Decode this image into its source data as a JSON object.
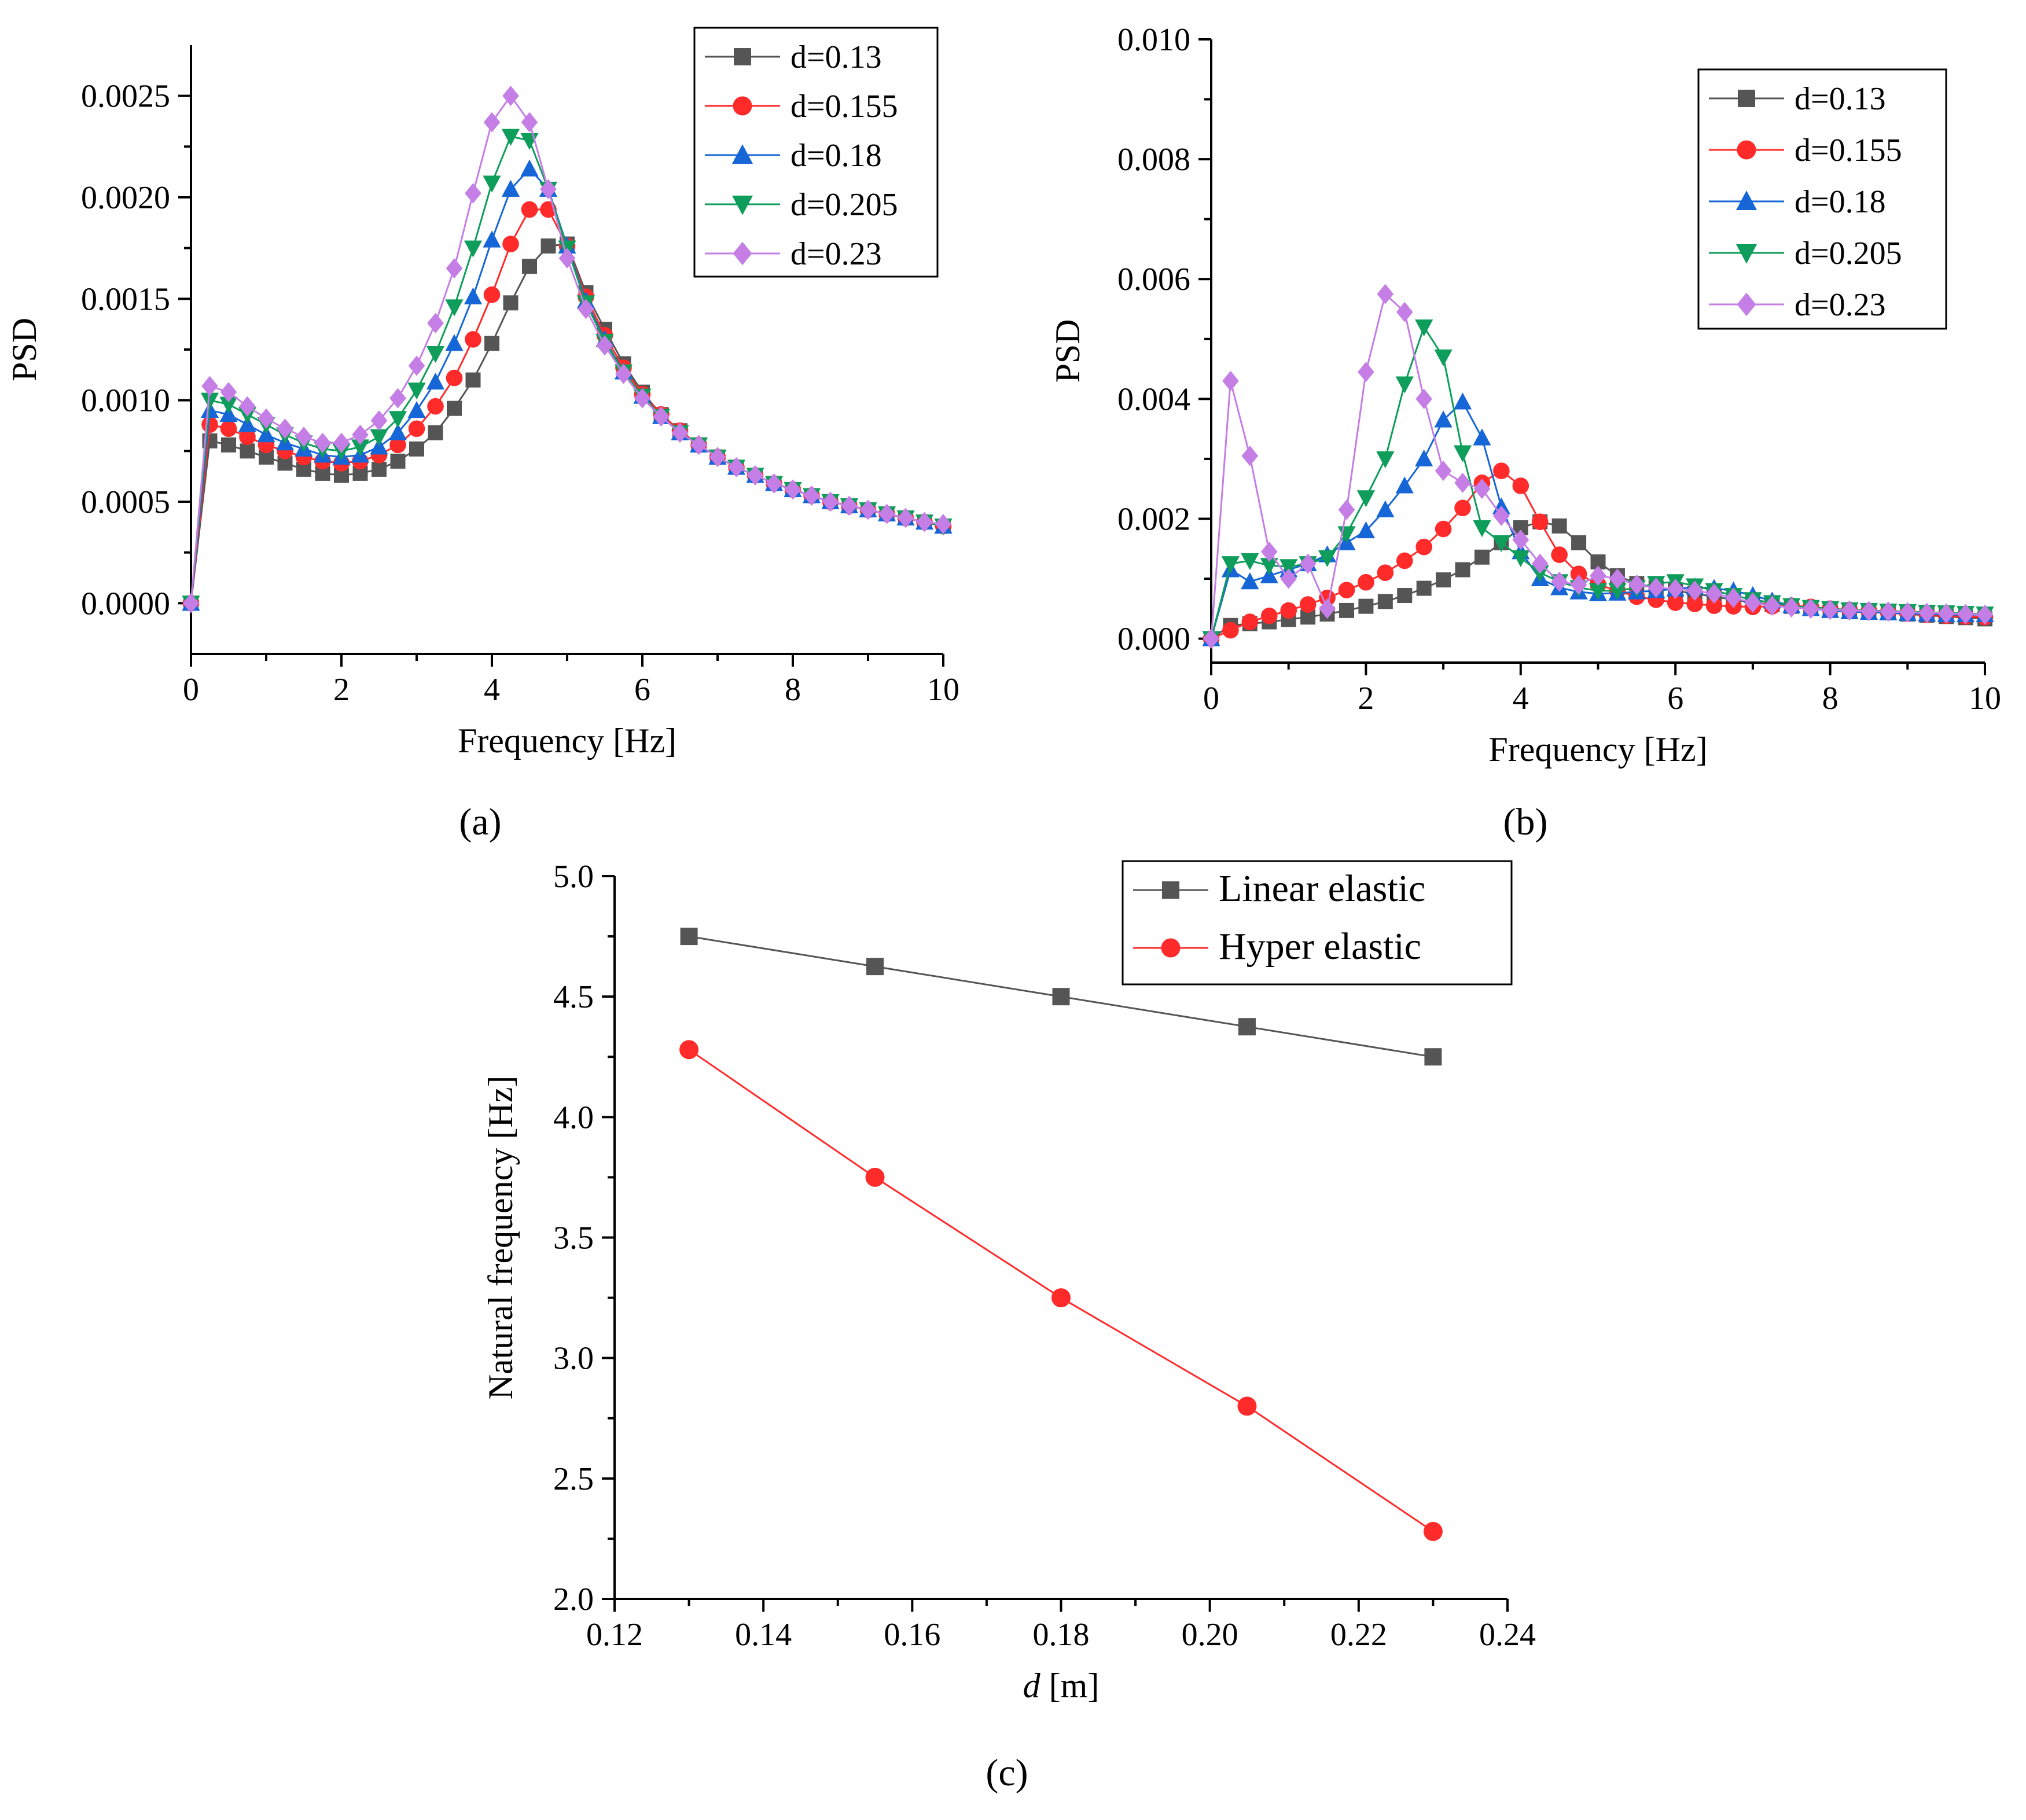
{
  "chart_data": [
    {
      "id": "a",
      "type": "line",
      "panel_label": "(a)",
      "title": "",
      "xlabel": "Frequency [Hz]",
      "ylabel": "PSD",
      "xlim": [
        0,
        10
      ],
      "ylim": [
        -0.00025,
        0.00275
      ],
      "xticks": [
        "0",
        "2",
        "4",
        "6",
        "8",
        "10"
      ],
      "yticks": [
        "0.0000",
        "0.0005",
        "0.0010",
        "0.0015",
        "0.0020",
        "0.0025"
      ],
      "legend_position": "top-right",
      "x": [
        0,
        0.25,
        0.5,
        0.75,
        1.0,
        1.25,
        1.5,
        1.75,
        2.0,
        2.25,
        2.5,
        2.75,
        3.0,
        3.25,
        3.5,
        3.75,
        4.0,
        4.25,
        4.5,
        4.75,
        5.0,
        5.25,
        5.5,
        5.75,
        6.0,
        6.25,
        6.5,
        6.75,
        7.0,
        7.25,
        7.5,
        7.75,
        8.0,
        8.25,
        8.5,
        8.75,
        9.0,
        9.25,
        9.5,
        9.75,
        10.0
      ],
      "series": [
        {
          "name": "d=0.13",
          "color": "#555555",
          "marker": "square",
          "values": [
            0,
            0.0008,
            0.00078,
            0.00075,
            0.00072,
            0.00069,
            0.00066,
            0.00064,
            0.00063,
            0.00064,
            0.00066,
            0.0007,
            0.00076,
            0.00084,
            0.00096,
            0.0011,
            0.00128,
            0.00148,
            0.00166,
            0.00176,
            0.00177,
            0.00153,
            0.00135,
            0.00118,
            0.00104,
            0.00093,
            0.00085,
            0.00078,
            0.00072,
            0.00067,
            0.00063,
            0.00059,
            0.00056,
            0.00053,
            0.0005,
            0.00048,
            0.00046,
            0.00044,
            0.00042,
            0.0004,
            0.00038
          ]
        },
        {
          "name": "d=0.155",
          "color": "#ff2a2a",
          "marker": "circle",
          "values": [
            0,
            0.00088,
            0.00086,
            0.00082,
            0.00078,
            0.00075,
            0.00072,
            0.0007,
            0.00069,
            0.0007,
            0.00073,
            0.00078,
            0.00086,
            0.00097,
            0.00111,
            0.0013,
            0.00152,
            0.00177,
            0.00194,
            0.00194,
            0.00176,
            0.00151,
            0.00132,
            0.00116,
            0.00103,
            0.00093,
            0.00085,
            0.00078,
            0.00072,
            0.00067,
            0.00063,
            0.00059,
            0.00056,
            0.00053,
            0.0005,
            0.00048,
            0.00046,
            0.00044,
            0.00042,
            0.0004,
            0.00038
          ]
        },
        {
          "name": "d=0.18",
          "color": "#1666d8",
          "marker": "triangle-up",
          "values": [
            0,
            0.00095,
            0.00093,
            0.00088,
            0.00083,
            0.00079,
            0.00076,
            0.00073,
            0.00072,
            0.00073,
            0.00077,
            0.00084,
            0.00095,
            0.00109,
            0.00128,
            0.00151,
            0.00179,
            0.00204,
            0.00214,
            0.00204,
            0.00176,
            0.00149,
            0.0013,
            0.00114,
            0.00102,
            0.00092,
            0.00084,
            0.00078,
            0.00072,
            0.00067,
            0.00063,
            0.00059,
            0.00056,
            0.00053,
            0.0005,
            0.00048,
            0.00046,
            0.00044,
            0.00042,
            0.0004,
            0.00038
          ]
        },
        {
          "name": "d=0.205",
          "color": "#0e9d5a",
          "marker": "triangle-down",
          "values": [
            0,
            0.001,
            0.00098,
            0.00093,
            0.00088,
            0.00083,
            0.00079,
            0.00076,
            0.00075,
            0.00077,
            0.00082,
            0.00091,
            0.00105,
            0.00123,
            0.00146,
            0.00175,
            0.00207,
            0.0023,
            0.00228,
            0.00204,
            0.00175,
            0.00148,
            0.00129,
            0.00114,
            0.00102,
            0.00092,
            0.00084,
            0.00078,
            0.00072,
            0.00067,
            0.00063,
            0.00059,
            0.00056,
            0.00053,
            0.0005,
            0.00048,
            0.00046,
            0.00044,
            0.00042,
            0.0004,
            0.00038
          ]
        },
        {
          "name": "d=0.23",
          "color": "#c47ee6",
          "marker": "diamond",
          "values": [
            0,
            0.00107,
            0.00104,
            0.00097,
            0.00091,
            0.00086,
            0.00082,
            0.00079,
            0.00079,
            0.00083,
            0.0009,
            0.00101,
            0.00117,
            0.00138,
            0.00165,
            0.00202,
            0.00237,
            0.0025,
            0.00237,
            0.00204,
            0.0017,
            0.00145,
            0.00127,
            0.00113,
            0.00101,
            0.00092,
            0.00084,
            0.00078,
            0.00072,
            0.00067,
            0.00063,
            0.00059,
            0.00056,
            0.00053,
            0.0005,
            0.00048,
            0.00046,
            0.00044,
            0.00042,
            0.0004,
            0.00039
          ]
        }
      ]
    },
    {
      "id": "b",
      "type": "line",
      "panel_label": "(b)",
      "title": "",
      "xlabel": "Frequency [Hz]",
      "ylabel": "PSD",
      "xlim": [
        0,
        10
      ],
      "ylim": [
        -0.0004,
        0.01
      ],
      "xticks": [
        "0",
        "2",
        "4",
        "6",
        "8",
        "10"
      ],
      "yticks": [
        "0.000",
        "0.002",
        "0.004",
        "0.006",
        "0.008",
        "0.010"
      ],
      "legend_position": "top-right",
      "x": [
        0,
        0.25,
        0.5,
        0.75,
        1.0,
        1.25,
        1.5,
        1.75,
        2.0,
        2.25,
        2.5,
        2.75,
        3.0,
        3.25,
        3.5,
        3.75,
        4.0,
        4.25,
        4.5,
        4.75,
        5.0,
        5.25,
        5.5,
        5.75,
        6.0,
        6.25,
        6.5,
        6.75,
        7.0,
        7.25,
        7.5,
        7.75,
        8.0,
        8.25,
        8.5,
        8.75,
        9.0,
        9.25,
        9.5,
        9.75,
        10.0
      ],
      "series": [
        {
          "name": "d=0.13",
          "color": "#555555",
          "marker": "square",
          "values": [
            0,
            0.00022,
            0.00025,
            0.00028,
            0.00032,
            0.00036,
            0.00041,
            0.00047,
            0.00054,
            0.00062,
            0.00072,
            0.00084,
            0.00098,
            0.00115,
            0.00136,
            0.0016,
            0.00185,
            0.00195,
            0.00188,
            0.0016,
            0.00128,
            0.00105,
            0.00092,
            0.00085,
            0.0008,
            0.00075,
            0.0007,
            0.00065,
            0.0006,
            0.00057,
            0.00054,
            0.00051,
            0.00049,
            0.00047,
            0.00045,
            0.00043,
            0.00041,
            0.00039,
            0.00037,
            0.00035,
            0.00033
          ]
        },
        {
          "name": "d=0.155",
          "color": "#ff2a2a",
          "marker": "circle",
          "values": [
            0,
            0.00014,
            0.00028,
            0.00038,
            0.00047,
            0.00057,
            0.00068,
            0.00081,
            0.00094,
            0.0011,
            0.0013,
            0.00153,
            0.00183,
            0.00218,
            0.0026,
            0.0028,
            0.00255,
            0.00195,
            0.0014,
            0.00108,
            0.0009,
            0.0008,
            0.0007,
            0.00065,
            0.0006,
            0.00058,
            0.00055,
            0.00054,
            0.00053,
            0.00054,
            0.00055,
            0.00053,
            0.0005,
            0.00048,
            0.00046,
            0.00044,
            0.00042,
            0.0004,
            0.00038,
            0.00037,
            0.00036
          ]
        },
        {
          "name": "d=0.18",
          "color": "#1666d8",
          "marker": "triangle-up",
          "values": [
            0,
            0.00115,
            0.00095,
            0.00105,
            0.00115,
            0.00125,
            0.0014,
            0.0016,
            0.0018,
            0.00215,
            0.00255,
            0.003,
            0.00365,
            0.00395,
            0.00335,
            0.0022,
            0.00145,
            0.001,
            0.00085,
            0.00078,
            0.00075,
            0.00076,
            0.00078,
            0.0008,
            0.00083,
            0.00086,
            0.00084,
            0.0008,
            0.00072,
            0.00063,
            0.00055,
            0.0005,
            0.00047,
            0.00045,
            0.00044,
            0.00043,
            0.00042,
            0.00041,
            0.0004,
            0.0004,
            0.0004
          ]
        },
        {
          "name": "d=0.205",
          "color": "#0e9d5a",
          "marker": "triangle-down",
          "values": [
            0,
            0.00125,
            0.0013,
            0.00122,
            0.0012,
            0.00125,
            0.00135,
            0.00175,
            0.00235,
            0.003,
            0.00425,
            0.0052,
            0.0047,
            0.0031,
            0.00185,
            0.0016,
            0.00135,
            0.0011,
            0.00095,
            0.00085,
            0.0008,
            0.0008,
            0.00085,
            0.00092,
            0.00095,
            0.00088,
            0.0008,
            0.00072,
            0.00065,
            0.0006,
            0.00055,
            0.00052,
            0.0005,
            0.00048,
            0.00047,
            0.00046,
            0.00045,
            0.00044,
            0.00043,
            0.00042,
            0.00041
          ]
        },
        {
          "name": "d=0.23",
          "color": "#c47ee6",
          "marker": "diamond",
          "values": [
            0,
            0.0043,
            0.00305,
            0.00145,
            0.001,
            0.00125,
            0.0005,
            0.00215,
            0.00445,
            0.00575,
            0.00545,
            0.004,
            0.0028,
            0.0026,
            0.0025,
            0.00205,
            0.00165,
            0.00125,
            0.00095,
            0.0009,
            0.00105,
            0.001,
            0.0009,
            0.00085,
            0.00083,
            0.0008,
            0.00075,
            0.00068,
            0.0006,
            0.00055,
            0.00052,
            0.0005,
            0.00048,
            0.00047,
            0.00046,
            0.00045,
            0.00044,
            0.00043,
            0.00042,
            0.00041,
            0.0004
          ]
        }
      ]
    },
    {
      "id": "c",
      "type": "line",
      "panel_label": "(c)",
      "title": "",
      "xlabel": "d [m]",
      "xlabel_italic": "d",
      "xlabel_rest": " [m]",
      "ylabel": "Natural frequency [Hz]",
      "xlim": [
        0.12,
        0.24
      ],
      "ylim": [
        2.0,
        5.0
      ],
      "xticks": [
        "0.12",
        "0.14",
        "0.16",
        "0.18",
        "0.20",
        "0.22",
        "0.24"
      ],
      "yticks": [
        "2.0",
        "2.5",
        "3.0",
        "3.5",
        "4.0",
        "4.5",
        "5.0"
      ],
      "legend_position": "top-right",
      "x": [
        0.13,
        0.155,
        0.18,
        0.205,
        0.23
      ],
      "series": [
        {
          "name": "Linear elastic",
          "color": "#555555",
          "marker": "square",
          "values": [
            4.75,
            4.625,
            4.5,
            4.375,
            4.25
          ]
        },
        {
          "name": "Hyper elastic",
          "color": "#ff2a2a",
          "marker": "circle",
          "values": [
            4.28,
            3.75,
            3.25,
            2.8,
            2.28
          ]
        }
      ]
    }
  ]
}
